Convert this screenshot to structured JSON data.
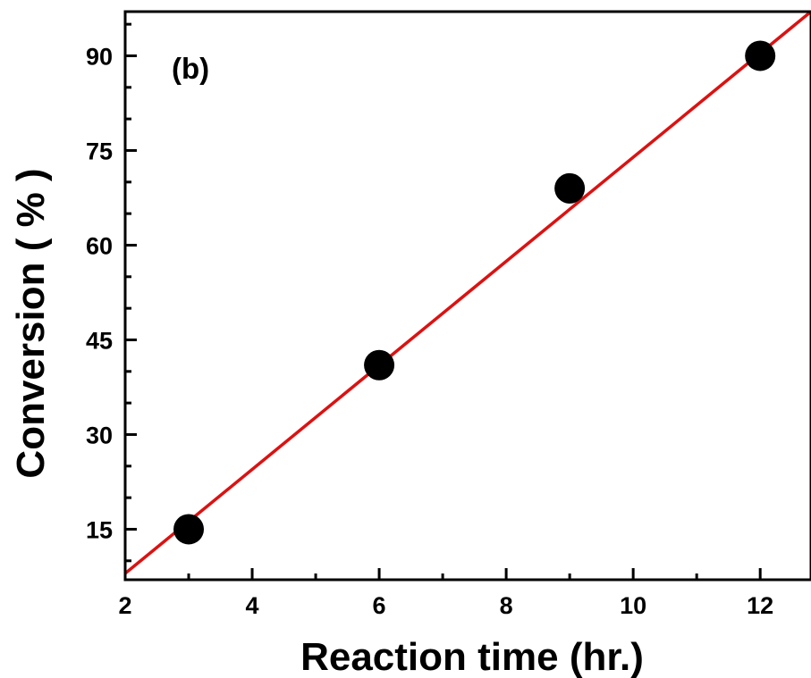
{
  "chart_data": {
    "type": "scatter",
    "panel_label": "(b)",
    "xlabel": "Reaction time (hr.)",
    "ylabel": "Conversion ( % )",
    "xlim": [
      2,
      12.8
    ],
    "ylim": [
      7,
      97
    ],
    "x_ticks": [
      2,
      4,
      6,
      8,
      10,
      12
    ],
    "y_ticks": [
      15,
      30,
      45,
      60,
      75,
      90
    ],
    "x_minor_step": 1,
    "y_minor_step": 5,
    "points": [
      {
        "x": 3,
        "y": 15
      },
      {
        "x": 6,
        "y": 41
      },
      {
        "x": 9,
        "y": 69
      },
      {
        "x": 12,
        "y": 90
      }
    ],
    "fit_line": {
      "type": "linear",
      "start": {
        "x": 2,
        "y": 8
      },
      "end": {
        "x": 12.8,
        "y": 97
      }
    },
    "colors": {
      "points": "#000000",
      "fit_line": "#dd1111",
      "axes": "#000000"
    },
    "grid": false,
    "legend": "none"
  }
}
